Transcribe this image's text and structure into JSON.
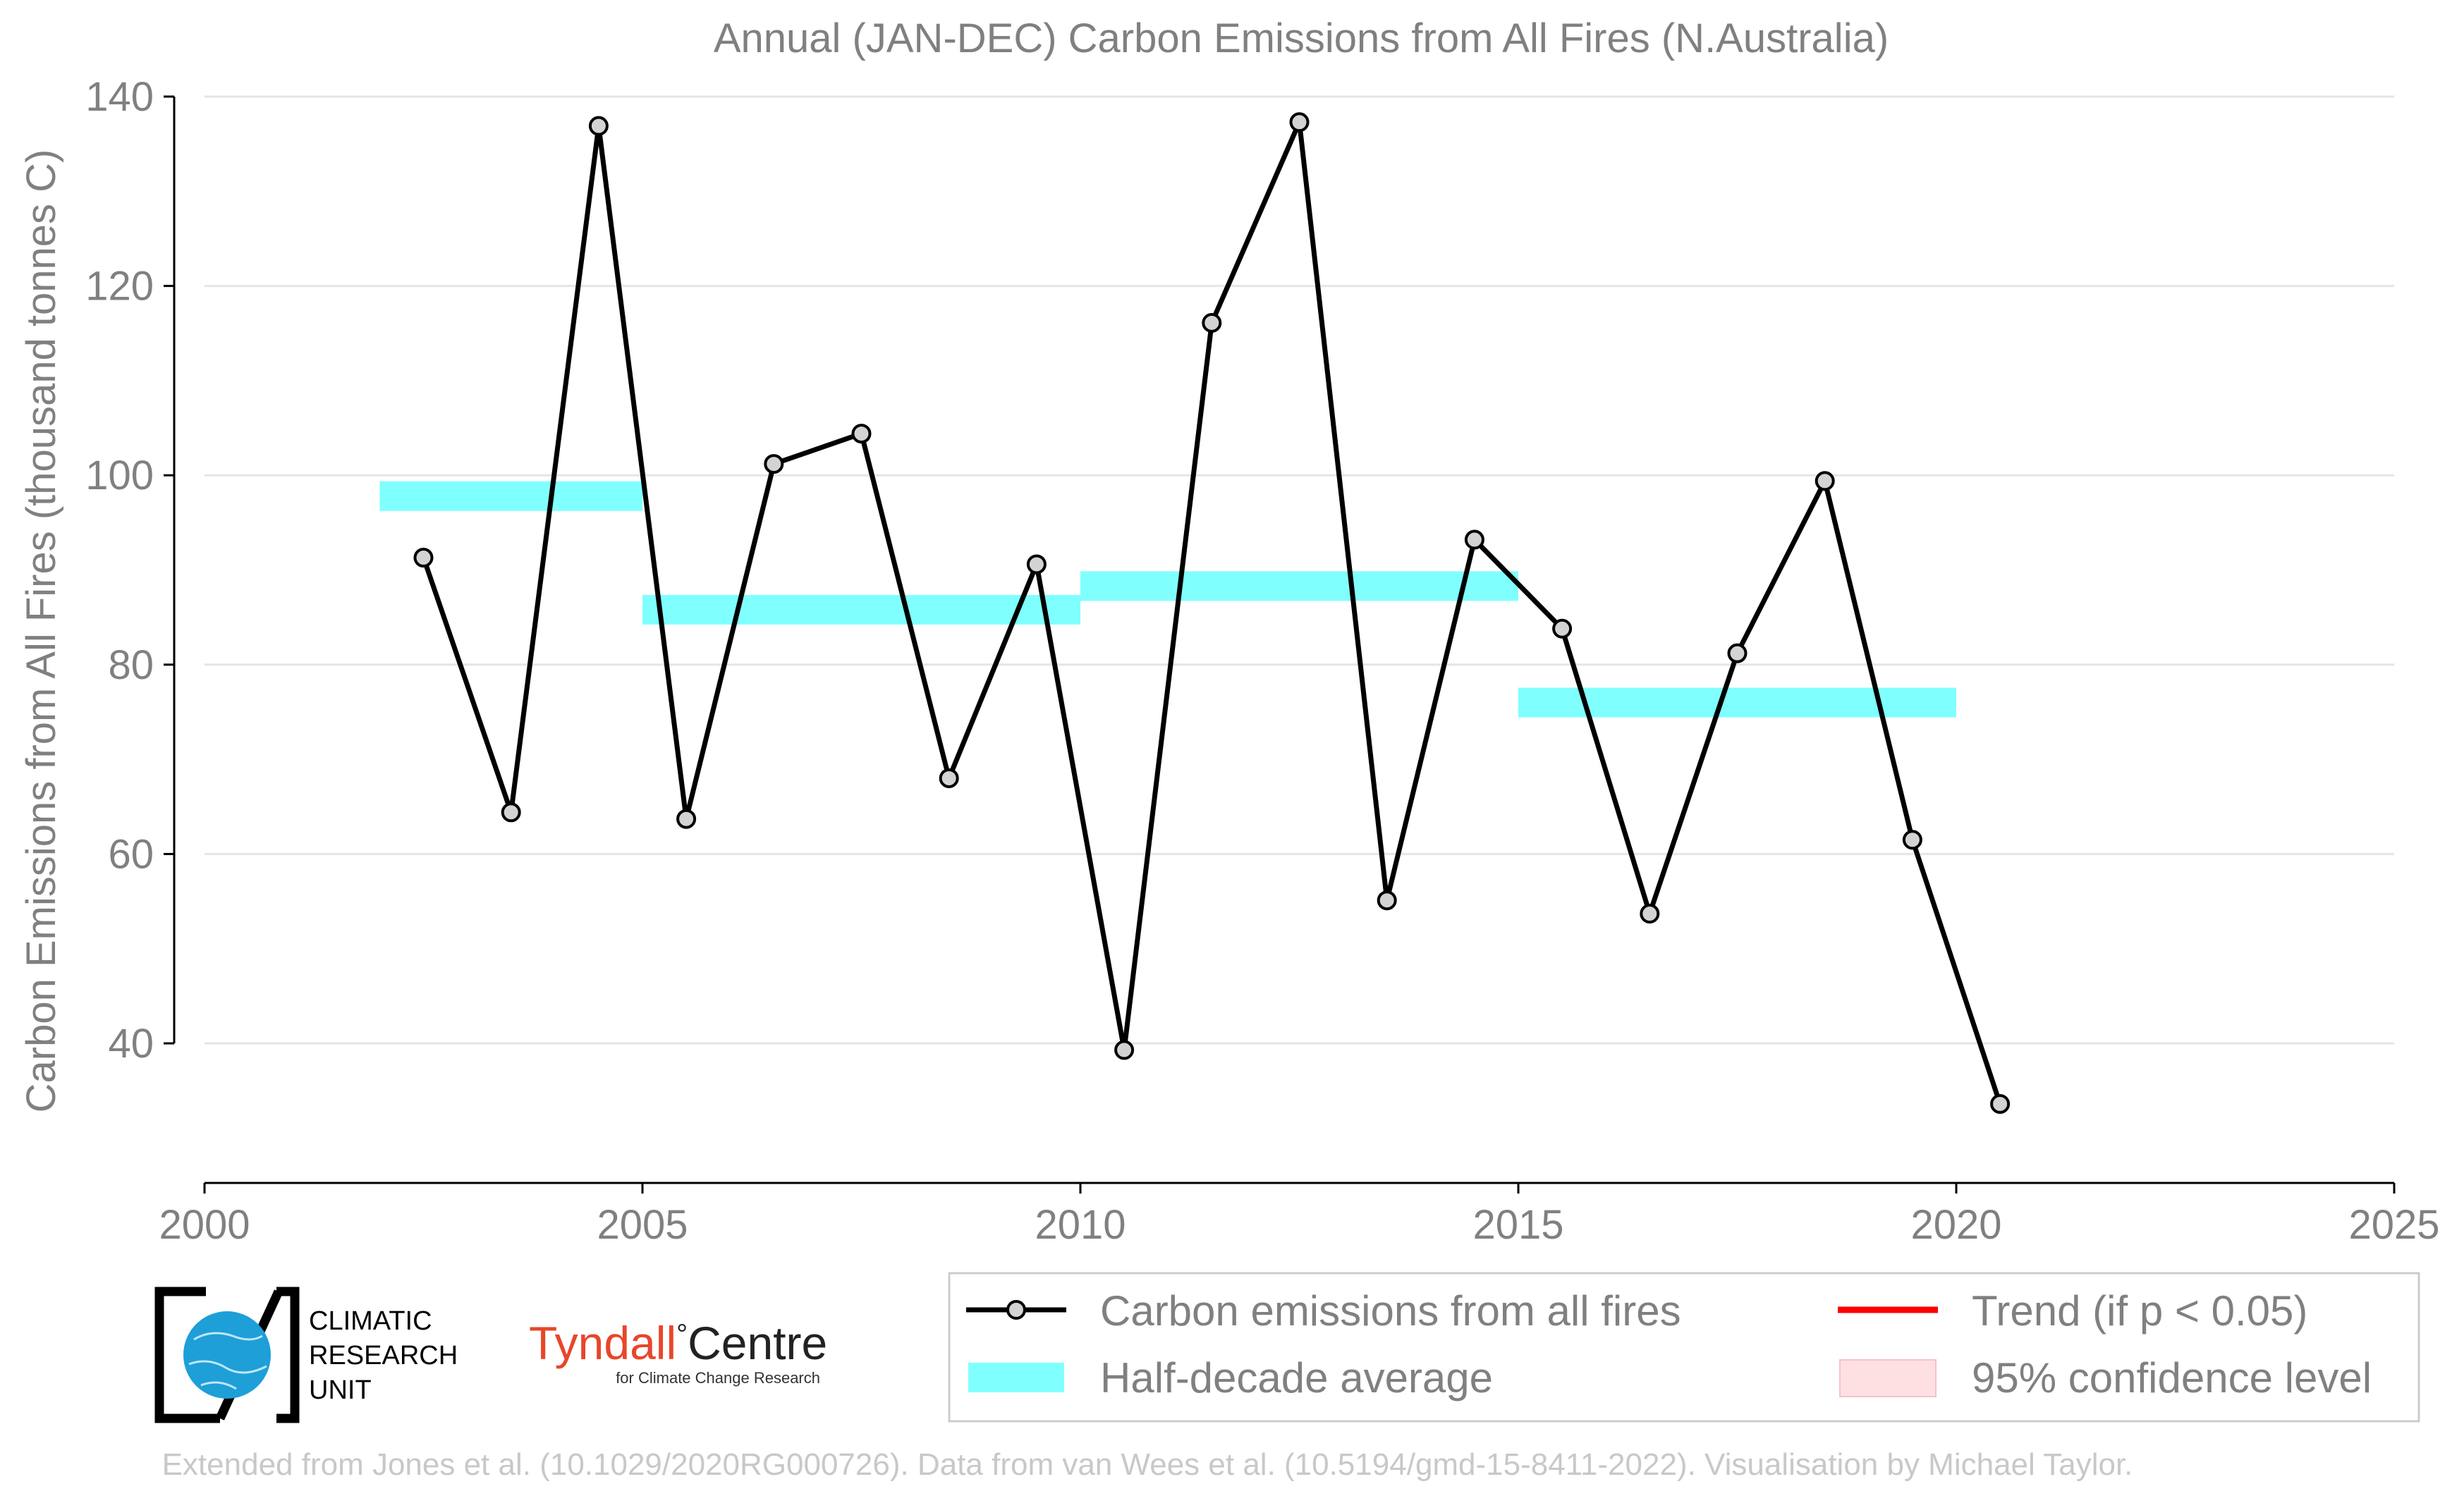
{
  "chart_data": {
    "type": "line",
    "title": "Annual (JAN-DEC) Carbon Emissions from All Fires (N.Australia)",
    "xlabel": "",
    "ylabel": "Carbon Emissions from All Fires (thousand tonnes C)",
    "xlim": [
      2000,
      2025
    ],
    "ylim": [
      26,
      140
    ],
    "xticks": [
      2000,
      2005,
      2010,
      2015,
      2020,
      2025
    ],
    "yticks": [
      40,
      60,
      80,
      100,
      120,
      140
    ],
    "grid": "horizontal",
    "series": [
      {
        "name": "Carbon emissions from all fires",
        "color": "#000000",
        "x": [
          2002.5,
          2003.5,
          2004.5,
          2005.5,
          2006.5,
          2007.5,
          2008.5,
          2009.5,
          2010.5,
          2011.5,
          2012.5,
          2013.5,
          2014.5,
          2015.5,
          2016.5,
          2017.5,
          2018.5,
          2019.5,
          2020.5
        ],
        "values": [
          91.3,
          64.4,
          136.9,
          63.7,
          101.2,
          104.4,
          68.0,
          90.6,
          39.3,
          116.1,
          137.3,
          55.1,
          93.2,
          83.8,
          53.7,
          81.2,
          99.4,
          61.5,
          33.6
        ]
      }
    ],
    "half_decade_average": {
      "name": "Half-decade average",
      "color": "#80ffff",
      "segments": [
        {
          "start": 2002,
          "end": 2005,
          "value": 97.8
        },
        {
          "start": 2005,
          "end": 2010,
          "value": 85.8
        },
        {
          "start": 2010,
          "end": 2015,
          "value": 88.3
        },
        {
          "start": 2015,
          "end": 2020,
          "value": 76.0
        }
      ]
    },
    "legend": {
      "position": "bottom-right",
      "items": [
        {
          "label": "Carbon emissions from all fires",
          "type": "line-marker",
          "color": "#000000"
        },
        {
          "label": "Trend (if p < 0.05)",
          "type": "line",
          "color": "#ff0000"
        },
        {
          "label": "Half-decade average",
          "type": "band",
          "color": "#80ffff"
        },
        {
          "label": "95% confidence level",
          "type": "patch",
          "color": "#ffe0e2"
        }
      ]
    }
  },
  "logos": {
    "cru_line1": "CLIMATIC",
    "cru_line2": "RESEARCH",
    "cru_line3": "UNIT",
    "tyndall_main": "Tyndall",
    "tyndall_degree": "°",
    "tyndall_centre": "Centre",
    "tyndall_sub": "for Climate Change Research"
  },
  "footer": "Extended from Jones et al. (10.1029/2020RG000726). Data from van Wees et al. (10.5194/gmd-15-8411-2022). Visualisation by Michael Taylor."
}
